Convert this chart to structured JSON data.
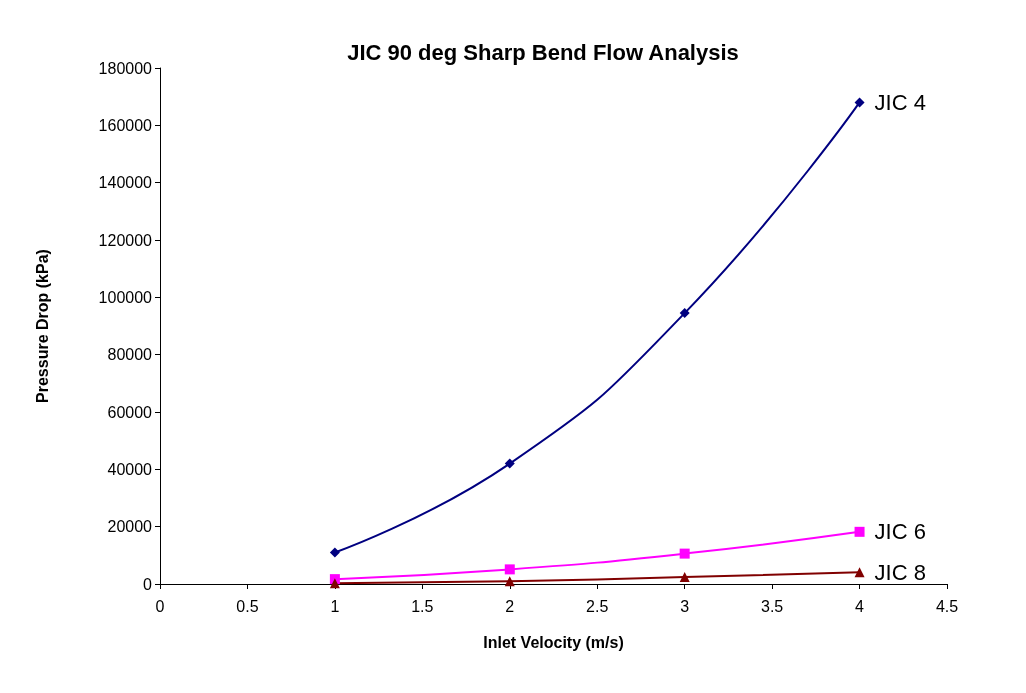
{
  "chart_data": {
    "type": "line",
    "title": "JIC 90 deg Sharp Bend Flow Analysis",
    "xlabel": "Inlet Velocity (m/s)",
    "ylabel": "Pressure Drop (kPa)",
    "x": [
      1,
      2,
      3,
      4
    ],
    "series": [
      {
        "name": "JIC 4",
        "color": "#000080",
        "marker": "diamond",
        "values": [
          11000,
          42000,
          94500,
          168000
        ]
      },
      {
        "name": "JIC 6",
        "color": "#ff00ff",
        "marker": "square",
        "values": [
          1700,
          5100,
          10600,
          18200
        ]
      },
      {
        "name": "JIC 8",
        "color": "#800000",
        "marker": "triangle",
        "values": [
          300,
          1000,
          2400,
          4100
        ]
      }
    ],
    "xlim": [
      0,
      4.5
    ],
    "xticks": [
      0,
      0.5,
      1,
      1.5,
      2,
      2.5,
      3,
      3.5,
      4,
      4.5
    ],
    "ylim": [
      0,
      180000
    ],
    "yticks": [
      0,
      20000,
      40000,
      60000,
      80000,
      100000,
      120000,
      140000,
      160000,
      180000
    ],
    "grid": false,
    "legend": false,
    "line_style": "solid"
  }
}
